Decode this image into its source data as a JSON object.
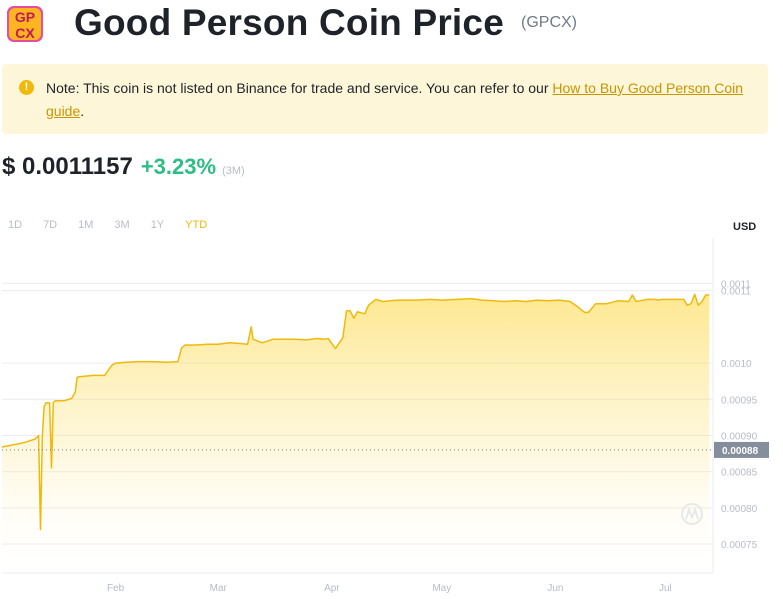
{
  "header": {
    "logo_text_top": "GP",
    "logo_text_bottom": "CX",
    "title": "Good Person Coin Price",
    "symbol": "(GPCX)"
  },
  "note": {
    "icon": "exclamation-icon",
    "text": "Note: This coin is not listed on Binance for trade and service. You can refer to our ",
    "link": "How to Buy Good Person Coin guide",
    "suffix": "."
  },
  "price": {
    "value": "$ 0.0011157",
    "change": "+3.23%",
    "period": "(3M)"
  },
  "ranges": {
    "items": [
      "1D",
      "7D",
      "1M",
      "3M",
      "1Y",
      "YTD"
    ],
    "active": "YTD"
  },
  "colors": {
    "accent": "#f0b90b",
    "positive": "#2ebd85",
    "note_bg": "#fef6d8"
  },
  "chart_data": {
    "type": "area",
    "currency_label": "USD",
    "y_ticks": [
      "0.0011",
      "0.0011",
      "0.0010",
      "0.00095",
      "0.00090",
      "0.00085",
      "0.00080",
      "0.00075"
    ],
    "y_tick_values": [
      0.00111,
      0.0011,
      0.001,
      0.00095,
      0.0009,
      0.00085,
      0.0008,
      0.00075
    ],
    "x_ticks": [
      "Feb",
      "Mar",
      "Apr",
      "May",
      "Jun",
      "Jul"
    ],
    "x_tick_days": [
      31,
      59,
      90,
      120,
      151,
      181
    ],
    "ylim": [
      0.00071,
      0.00117
    ],
    "xlim": [
      0,
      194
    ],
    "reference_value": 0.00088,
    "reference_label": "0.00088",
    "grid": true,
    "watermark_icon": "coinmarketcap-icon",
    "series": [
      {
        "x": [
          0,
          3,
          6,
          9,
          10,
          10.5,
          11,
          11.5,
          12,
          13,
          13.5,
          14,
          14.5,
          15,
          17,
          19,
          20,
          20.5,
          21,
          25,
          28,
          30,
          31,
          34,
          37,
          41,
          45,
          48,
          49,
          50,
          53,
          56,
          59,
          62,
          65,
          67,
          68,
          68.5,
          69,
          71,
          74,
          77,
          80,
          83,
          86,
          88,
          89,
          91,
          93,
          94,
          95,
          96,
          97,
          99,
          100,
          102,
          104,
          106,
          108,
          110,
          113,
          117,
          120,
          124,
          128,
          131,
          134,
          137,
          140,
          143,
          146,
          149,
          152,
          155,
          157,
          159,
          160,
          162,
          165,
          168,
          171,
          172,
          173,
          174,
          176,
          178,
          179,
          180,
          182,
          185,
          186,
          187,
          188,
          189,
          190,
          191,
          192,
          193
        ],
        "y": [
          0.000884,
          0.000887,
          0.00089,
          0.000895,
          0.0009,
          0.00077,
          0.000898,
          0.00094,
          0.000945,
          0.000945,
          0.000855,
          0.000945,
          0.000948,
          0.000948,
          0.000948,
          0.000951,
          0.00096,
          0.00098,
          0.000981,
          0.000983,
          0.000983,
          0.000997,
          0.001,
          0.001001,
          0.001002,
          0.001002,
          0.001001,
          0.001002,
          0.001021,
          0.001025,
          0.001025,
          0.001026,
          0.001026,
          0.001028,
          0.001027,
          0.001026,
          0.00105,
          0.001033,
          0.001032,
          0.001028,
          0.001033,
          0.001033,
          0.001033,
          0.001032,
          0.001034,
          0.001033,
          0.001034,
          0.00102,
          0.001035,
          0.001072,
          0.001072,
          0.001062,
          0.001071,
          0.001068,
          0.00108,
          0.001088,
          0.001085,
          0.001086,
          0.001087,
          0.001087,
          0.001087,
          0.001088,
          0.001087,
          0.001088,
          0.001089,
          0.001087,
          0.001086,
          0.001085,
          0.001086,
          0.001085,
          0.001087,
          0.001086,
          0.001087,
          0.001085,
          0.001078,
          0.00107,
          0.00107,
          0.001082,
          0.001082,
          0.001086,
          0.001085,
          0.001094,
          0.001085,
          0.001086,
          0.001088,
          0.001088,
          0.001087,
          0.001088,
          0.001088,
          0.001088,
          0.001088,
          0.00108,
          0.001082,
          0.001095,
          0.00108,
          0.001085,
          0.001094,
          0.001094
        ]
      }
    ]
  }
}
